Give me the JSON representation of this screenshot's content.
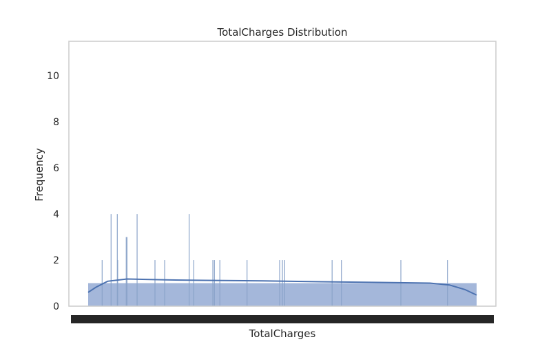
{
  "chart_data": {
    "type": "histogram",
    "title": "TotalCharges Distribution",
    "xlabel": "TotalCharges",
    "ylabel": "Frequency",
    "ylim": [
      0,
      11.5
    ],
    "yticks": [
      0,
      2,
      4,
      6,
      8,
      10
    ],
    "grid": false,
    "colors": {
      "bar_fill": "#a4b7da",
      "spike": "#8aa3c9",
      "kde_line": "#4c72b0",
      "frame": "#cccccc",
      "xtick_band": "#262626"
    },
    "x_tick_labels_note": "x tick labels are overlapped and illegible",
    "baseline_count": 1,
    "spikes": [
      {
        "x": 0.036,
        "count": 2
      },
      {
        "x": 0.059,
        "count": 4
      },
      {
        "x": 0.075,
        "count": 4
      },
      {
        "x": 0.076,
        "count": 2
      },
      {
        "x": 0.098,
        "count": 3
      },
      {
        "x": 0.1,
        "count": 3
      },
      {
        "x": 0.126,
        "count": 4
      },
      {
        "x": 0.172,
        "count": 2
      },
      {
        "x": 0.197,
        "count": 2
      },
      {
        "x": 0.26,
        "count": 4
      },
      {
        "x": 0.272,
        "count": 2
      },
      {
        "x": 0.321,
        "count": 2
      },
      {
        "x": 0.325,
        "count": 2
      },
      {
        "x": 0.339,
        "count": 2
      },
      {
        "x": 0.409,
        "count": 2
      },
      {
        "x": 0.493,
        "count": 2
      },
      {
        "x": 0.5,
        "count": 2
      },
      {
        "x": 0.506,
        "count": 2
      },
      {
        "x": 0.628,
        "count": 2
      },
      {
        "x": 0.652,
        "count": 2
      },
      {
        "x": 0.805,
        "count": 2
      },
      {
        "x": 0.925,
        "count": 2
      }
    ],
    "kde": [
      {
        "x": 0.0,
        "y": 0.6
      },
      {
        "x": 0.02,
        "y": 0.82
      },
      {
        "x": 0.05,
        "y": 1.08
      },
      {
        "x": 0.1,
        "y": 1.18
      },
      {
        "x": 0.2,
        "y": 1.14
      },
      {
        "x": 0.3,
        "y": 1.12
      },
      {
        "x": 0.45,
        "y": 1.1
      },
      {
        "x": 0.6,
        "y": 1.06
      },
      {
        "x": 0.75,
        "y": 1.03
      },
      {
        "x": 0.88,
        "y": 1.0
      },
      {
        "x": 0.93,
        "y": 0.92
      },
      {
        "x": 0.97,
        "y": 0.72
      },
      {
        "x": 1.0,
        "y": 0.48
      }
    ]
  }
}
